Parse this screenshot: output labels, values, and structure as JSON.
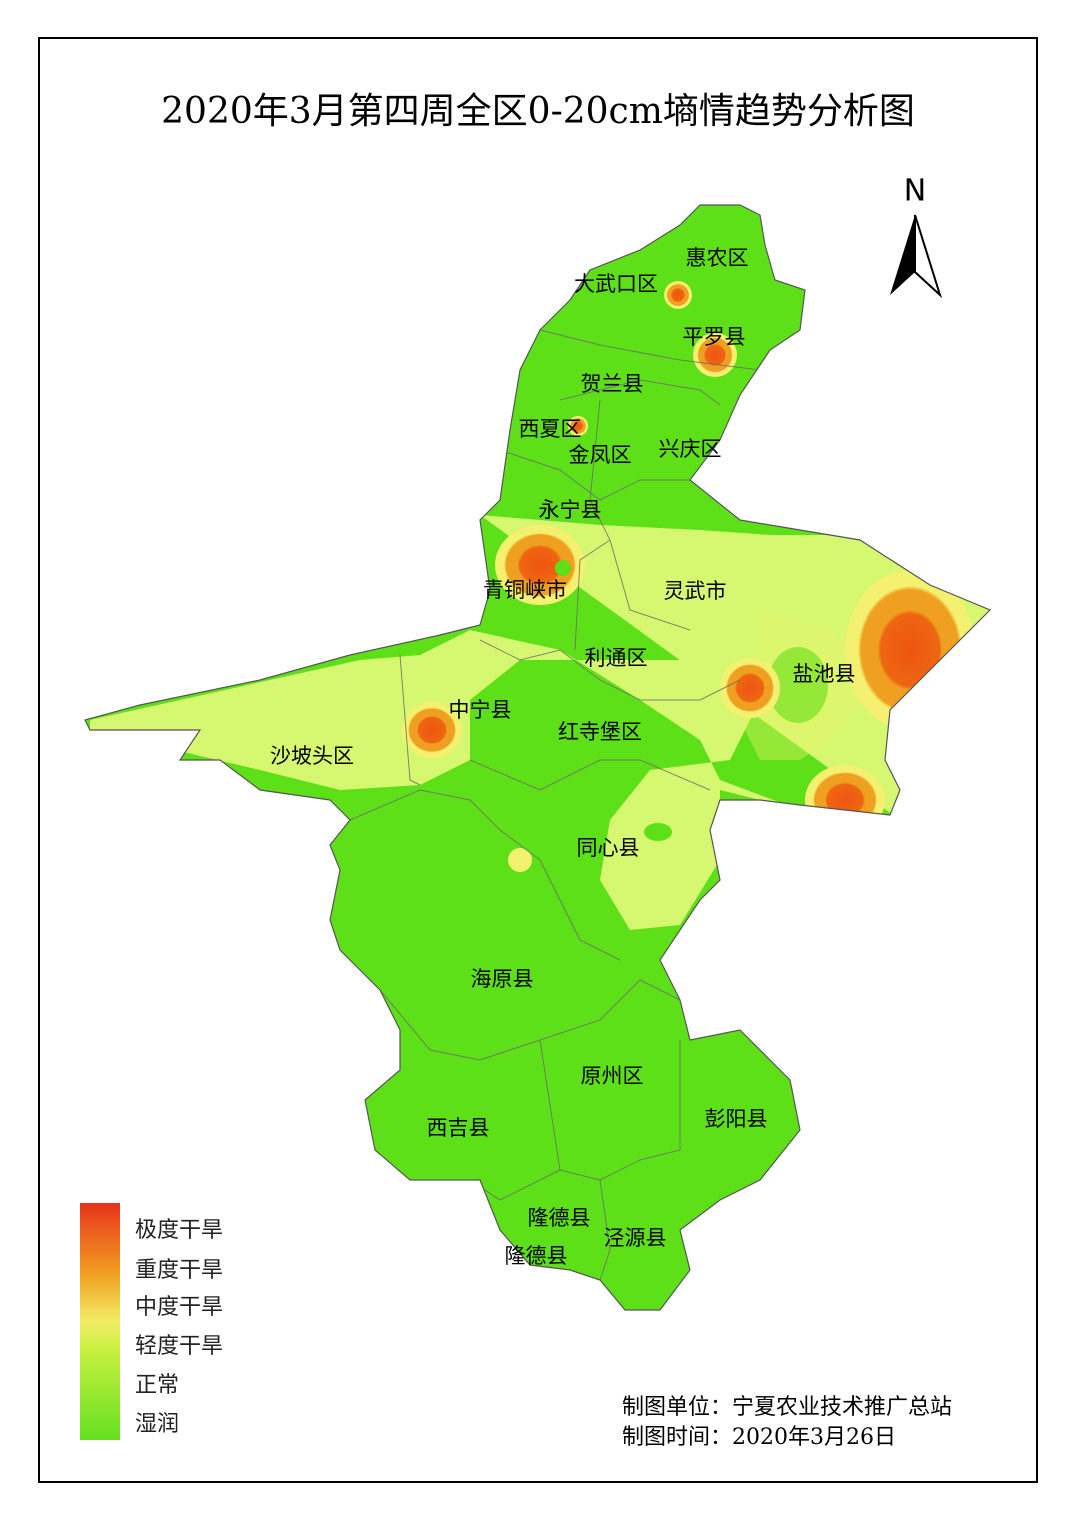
{
  "title": "2020年3月第四周全区0-20cm墒情趋势分析图",
  "north": "N",
  "districts": [
    "惠农区",
    "大武口区",
    "平罗县",
    "贺兰县",
    "西夏区",
    "金凤区",
    "兴庆区",
    "永宁县",
    "青铜峡市",
    "灵武市",
    "利通区",
    "盐池县",
    "中宁县",
    "红寺堡区",
    "沙坡头区",
    "同心县",
    "海原县",
    "原州区",
    "西吉县",
    "彭阳县",
    "隆德县",
    "泾源县",
    "隆德县"
  ],
  "legend": [
    "极度干旱",
    "重度干旱",
    "中度干旱",
    "轻度干旱",
    "正常",
    "湿润"
  ],
  "credits": [
    "制图单位：宁夏农业技术推广总站",
    "制图时间：2020年3月26日"
  ]
}
